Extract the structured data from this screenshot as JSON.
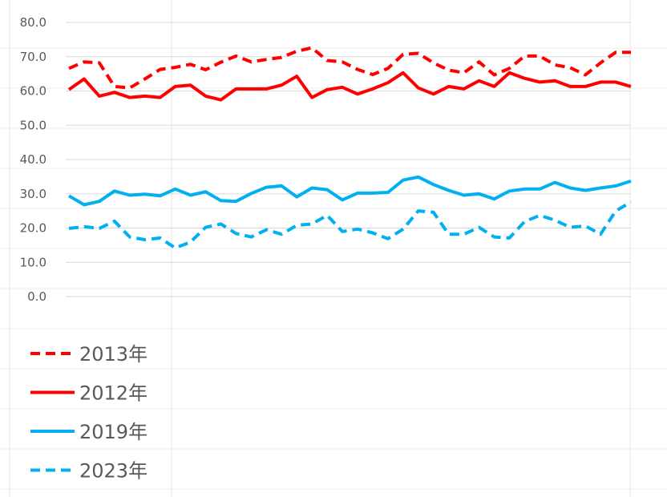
{
  "chart_data": {
    "type": "line",
    "ylim": [
      0,
      80
    ],
    "yticks": [
      "0.0",
      "10.0",
      "20.0",
      "30.0",
      "40.0",
      "50.0",
      "60.0",
      "70.0",
      "80.0"
    ],
    "grid": true,
    "legend_position": "bottom-left",
    "series": [
      {
        "name": "2013年",
        "color": "#ff0000",
        "dash": true,
        "values": [
          66.6,
          68.5,
          68.2,
          61.3,
          60.9,
          63.5,
          66.3,
          66.9,
          67.8,
          66.2,
          68.4,
          70.2,
          68.5,
          69.2,
          69.8,
          71.6,
          72.6,
          68.9,
          68.5,
          66.3,
          64.8,
          66.6,
          70.7,
          71.0,
          68.2,
          66.1,
          65.3,
          68.5,
          64.7,
          66.6,
          70.2,
          70.2,
          67.6,
          66.8,
          64.7,
          68.2,
          71.3,
          71.3
        ]
      },
      {
        "name": "2012年",
        "color": "#ff0000",
        "dash": false,
        "values": [
          60.4,
          63.5,
          58.5,
          59.6,
          58.1,
          58.5,
          58.1,
          61.3,
          61.7,
          58.5,
          57.4,
          60.6,
          60.6,
          60.6,
          61.7,
          64.3,
          58.1,
          60.4,
          61.1,
          59.1,
          60.6,
          62.4,
          65.3,
          60.9,
          59.1,
          61.3,
          60.6,
          63.0,
          61.3,
          65.3,
          63.7,
          62.6,
          63.0,
          61.3,
          61.3,
          62.6,
          62.6,
          61.3
        ]
      },
      {
        "name": "2019年",
        "color": "#00b0f0",
        "dash": false,
        "values": [
          29.4,
          26.8,
          27.8,
          30.8,
          29.6,
          29.9,
          29.4,
          31.4,
          29.6,
          30.6,
          28.0,
          27.8,
          30.1,
          31.9,
          32.3,
          29.1,
          31.7,
          31.2,
          28.2,
          30.2,
          30.2,
          30.4,
          34.0,
          34.9,
          32.7,
          31.0,
          29.6,
          30.0,
          28.5,
          30.8,
          31.4,
          31.4,
          33.3,
          31.7,
          31.0,
          31.7,
          32.3,
          33.7
        ]
      },
      {
        "name": "2023年",
        "color": "#00b0f0",
        "dash": true,
        "values": [
          19.9,
          20.4,
          19.9,
          22.0,
          17.4,
          16.6,
          17.1,
          14.2,
          15.9,
          20.2,
          21.2,
          18.4,
          17.4,
          19.5,
          18.2,
          20.8,
          21.2,
          23.7,
          19.0,
          19.7,
          18.6,
          16.9,
          19.7,
          25.0,
          24.6,
          18.2,
          18.2,
          20.2,
          17.4,
          17.1,
          21.9,
          23.7,
          22.3,
          20.2,
          20.6,
          18.2,
          25.0,
          27.6
        ]
      }
    ],
    "legend_order": [
      "2013年",
      "2012年",
      "2019年",
      "2023年"
    ]
  }
}
